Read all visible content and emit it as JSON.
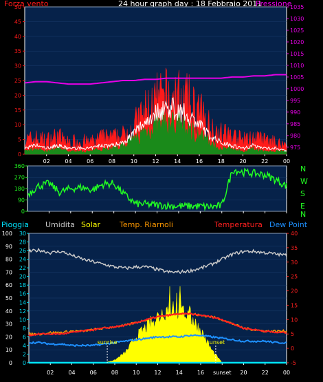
{
  "colors": {
    "plot_bg": "#06224a",
    "wind": "#ff1a1a",
    "gust": "#ffffff",
    "avg": "#1a8a1a",
    "pressure": "#e600e6",
    "direction": "#22ff22",
    "rain": "#00e5ff",
    "humidity": "#c8c8c8",
    "solar": "#ffff00",
    "temp_riarnoli": "#ff9900",
    "temperatura": "#ff2020",
    "dew_point": "#1e90ff",
    "white": "#ffffff",
    "grid": "#1b3e6e"
  },
  "header": {
    "wind_label": "Forza vento",
    "title": "24 hour graph day : 18 Febbraio 2011",
    "pressure_label": "Pressione"
  },
  "compass": [
    "N",
    "W",
    "S",
    "E",
    "N"
  ],
  "legend": {
    "pioggia": "Pioggia",
    "umidita": "Umidita",
    "solar": "Solar",
    "temp_riarnoli": "Temp. Riarnoli",
    "temperatura": "Temperatura",
    "dew_point": "Dew Point"
  },
  "chart_data": [
    {
      "type": "line",
      "name": "wind_pressure",
      "x_hours": [
        0,
        1,
        2,
        3,
        4,
        5,
        6,
        7,
        8,
        9,
        10,
        11,
        12,
        13,
        14,
        15,
        16,
        17,
        18,
        19,
        20,
        21,
        22,
        23,
        24
      ],
      "xtick_labels": [
        "02",
        "04",
        "06",
        "08",
        "10",
        "12",
        "14",
        "16",
        "18",
        "20",
        "22",
        "00"
      ],
      "left_axis": {
        "label": "Forza vento",
        "ylim": [
          0,
          50
        ],
        "ticks": [
          0,
          5,
          10,
          15,
          20,
          25,
          30,
          35,
          40,
          45,
          50
        ]
      },
      "right_axis": {
        "label": "Pressione",
        "ylim": [
          972,
          1035
        ],
        "ticks": [
          975,
          980,
          985,
          990,
          995,
          1000,
          1005,
          1010,
          1015,
          1020,
          1025,
          1030,
          1035
        ]
      },
      "series": [
        {
          "name": "Forza vento",
          "values": [
            6,
            7,
            6,
            8,
            5,
            6,
            5,
            7,
            7,
            8,
            12,
            18,
            22,
            24,
            24,
            22,
            18,
            12,
            9,
            8,
            6,
            7,
            6,
            5,
            4
          ]
        },
        {
          "name": "gust",
          "values": [
            2,
            3,
            2,
            3,
            2,
            2,
            2,
            3,
            3,
            4,
            7,
            11,
            14,
            16,
            15,
            13,
            10,
            6,
            4,
            3,
            2,
            3,
            2,
            2,
            1
          ]
        },
        {
          "name": "avg",
          "values": [
            1,
            2,
            1,
            2,
            1,
            1,
            1,
            2,
            2,
            3,
            5,
            8,
            10,
            11,
            11,
            9,
            7,
            4,
            2,
            2,
            1,
            2,
            1,
            1,
            1
          ]
        },
        {
          "name": "Pressione",
          "values": [
            1002.5,
            1003,
            1003,
            1002.5,
            1002,
            1002,
            1002,
            1002.5,
            1003,
            1003.5,
            1003.5,
            1004,
            1004,
            1004.5,
            1004.5,
            1004.5,
            1004.5,
            1004.5,
            1004.5,
            1005,
            1005,
            1005.5,
            1005.5,
            1006,
            1006
          ]
        }
      ]
    },
    {
      "type": "line",
      "name": "wind_direction",
      "x_hours": [
        0,
        1,
        2,
        3,
        4,
        5,
        6,
        7,
        8,
        9,
        10,
        11,
        12,
        13,
        14,
        15,
        16,
        17,
        18,
        19,
        20,
        21,
        22,
        23,
        24
      ],
      "ylim": [
        0,
        360
      ],
      "yticks": [
        0,
        90,
        180,
        270,
        360
      ],
      "series": [
        {
          "name": "direction",
          "values": [
            135,
            200,
            220,
            150,
            180,
            190,
            170,
            215,
            220,
            130,
            60,
            55,
            50,
            45,
            40,
            40,
            40,
            35,
            45,
            330,
            310,
            300,
            290,
            250,
            200
          ]
        }
      ]
    },
    {
      "type": "line",
      "name": "rain_humidity_solar_temp",
      "x_hours": [
        0,
        1,
        2,
        3,
        4,
        5,
        6,
        7,
        8,
        9,
        10,
        11,
        12,
        13,
        14,
        15,
        16,
        17,
        18,
        19,
        20,
        21,
        22,
        23,
        24
      ],
      "xtick_labels": [
        "02",
        "04",
        "06",
        "08",
        "10",
        "12",
        "14",
        "16",
        "sunset",
        "20",
        "22",
        "00"
      ],
      "left_axis_outer": {
        "label": "Pioggia",
        "ylim": [
          0,
          100
        ],
        "ticks": [
          0,
          10,
          20,
          30,
          40,
          50,
          60,
          70,
          80,
          90,
          100
        ]
      },
      "left_axis_inner": {
        "label": "Umidita",
        "ylim": [
          0,
          30
        ],
        "ticks": [
          0,
          2,
          4,
          6,
          8,
          10,
          12,
          14,
          16,
          18,
          20,
          22,
          24,
          26,
          28,
          30
        ]
      },
      "right_axis": {
        "label": "Temperatura",
        "ylim": [
          -5,
          40
        ],
        "ticks": [
          -5,
          0,
          5,
          10,
          15,
          20,
          25,
          30,
          35,
          40
        ]
      },
      "annotations": [
        {
          "text": "sunrise",
          "x_hour": 7.3
        },
        {
          "text": "sunset",
          "x_hour": 17.4
        }
      ],
      "series": [
        {
          "name": "Pioggia",
          "axis": "left_outer",
          "values": [
            0,
            0,
            0,
            0,
            0,
            0,
            0,
            0,
            0,
            0,
            0,
            0,
            0,
            0,
            0,
            0,
            0,
            0,
            0,
            0,
            0,
            0,
            0,
            0,
            0
          ]
        },
        {
          "name": "Umidita",
          "axis": "left_outer",
          "values": [
            86,
            87,
            85,
            86,
            83,
            80,
            78,
            76,
            74,
            73,
            74,
            74,
            72,
            70,
            70,
            71,
            73,
            76,
            80,
            84,
            86,
            86,
            85,
            84,
            83
          ]
        },
        {
          "name": "Solar",
          "axis": "left_outer",
          "values": [
            0,
            0,
            0,
            0,
            0,
            0,
            0,
            0,
            2,
            8,
            20,
            28,
            35,
            42,
            40,
            36,
            25,
            10,
            0,
            0,
            0,
            0,
            0,
            0,
            0
          ]
        },
        {
          "name": "Temp. Riarnoli",
          "axis": "right",
          "values": [
            5,
            5,
            5.5,
            5.5,
            6,
            6,
            6.5,
            7,
            7.5,
            8,
            9,
            10,
            11,
            11.5,
            12,
            12,
            11.5,
            11,
            10,
            8.5,
            7,
            6.5,
            6,
            6,
            6
          ]
        },
        {
          "name": "Temperatura",
          "axis": "right",
          "values": [
            4.5,
            5,
            5,
            5,
            5.5,
            6,
            6.5,
            7,
            7.5,
            8,
            9,
            10,
            11,
            11.5,
            12,
            12,
            11.5,
            11,
            10,
            8.5,
            7,
            6.5,
            6,
            5.5,
            5.5
          ]
        },
        {
          "name": "Dew Point",
          "axis": "right",
          "values": [
            2,
            2,
            1.5,
            1.5,
            1,
            1,
            1,
            1.5,
            2,
            2.5,
            3,
            3.5,
            4,
            4,
            4,
            4.5,
            4.5,
            4,
            3.5,
            3,
            2.5,
            2.5,
            2.5,
            2,
            2
          ]
        }
      ]
    }
  ]
}
